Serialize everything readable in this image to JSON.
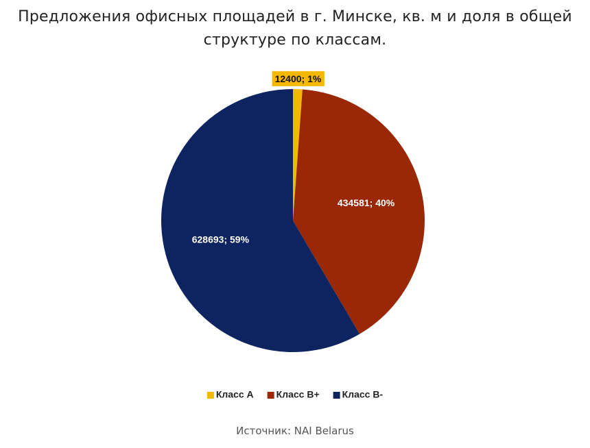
{
  "chart_data": {
    "type": "pie",
    "title": "Предложения офисных площадей в г. Минске, кв. м и доля в общей структуре по классам.",
    "categories": [
      "Класс A",
      "Класс B+",
      "Класс B-"
    ],
    "values": [
      12400,
      434581,
      628693
    ],
    "value_labels": [
      "12400; 1%",
      "434581; 40%",
      "628693; 59%"
    ],
    "colors": [
      "#f5b800",
      "#9a2806",
      "#0d2461"
    ],
    "legend": "bottom",
    "source": "Источник: NAI Belarus"
  }
}
